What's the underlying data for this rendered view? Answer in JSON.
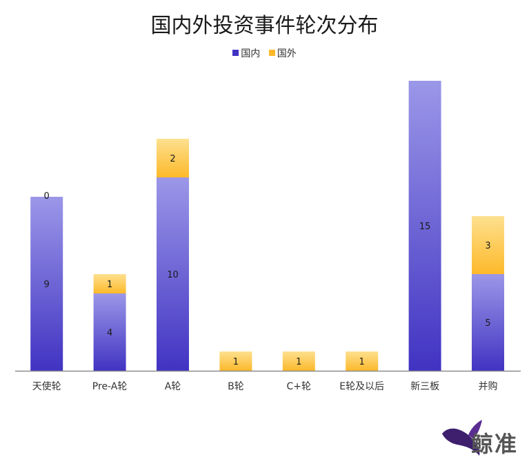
{
  "chart_data": {
    "type": "bar",
    "stacked": true,
    "title": "国内外投资事件轮次分布",
    "categories": [
      "天使轮",
      "Pre-A轮",
      "A轮",
      "B轮",
      "C+轮",
      "E轮及以后",
      "新三板",
      "并购"
    ],
    "series": [
      {
        "name": "国内",
        "values": [
          9,
          4,
          10,
          0,
          0,
          0,
          15,
          5
        ],
        "color_top": "#9b97e8",
        "color_bottom": "#4133c2"
      },
      {
        "name": "国外",
        "values": [
          0,
          1,
          2,
          1,
          1,
          1,
          0,
          3
        ],
        "color_top": "#fde08f",
        "color_bottom": "#fdb92a"
      }
    ],
    "data_labels": [
      [
        "9",
        "4",
        "10",
        "",
        "",
        "",
        "15",
        "5"
      ],
      [
        "0",
        "1",
        "2",
        "1",
        "1",
        "1",
        "",
        "3"
      ]
    ],
    "legend_position": "top",
    "grid": false,
    "ylim": [
      0,
      15
    ]
  },
  "logo": {
    "text": "鲸准"
  }
}
